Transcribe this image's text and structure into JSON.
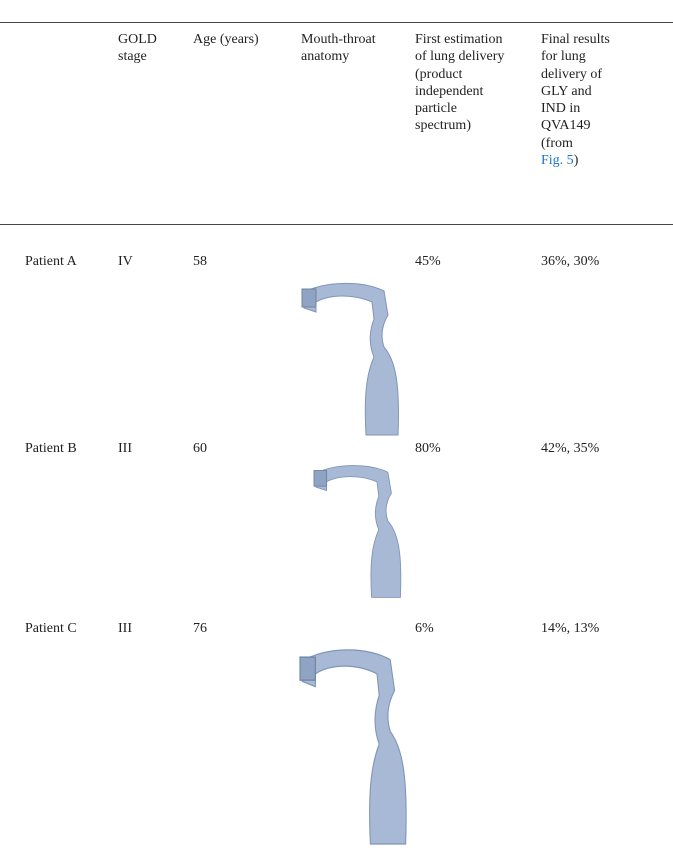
{
  "table": {
    "header": [
      [],
      [
        "GOLD",
        "stage"
      ],
      [
        "Age (years)"
      ],
      [
        "Mouth-throat",
        "anatomy"
      ],
      [
        "First estimation",
        "of lung delivery",
        "(product",
        "independent",
        "particle",
        "spectrum)"
      ],
      [
        "Final results",
        "for lung",
        "delivery of",
        "GLY and",
        "IND in",
        "QVA149",
        "(from"
      ]
    ],
    "header_link": "Fig. 5",
    "header_link_suffix": ")",
    "rows": [
      [
        "Patient A",
        "IV",
        "58",
        "45%",
        "36%, 30%"
      ],
      [
        "Patient B",
        "III",
        "60",
        "80%",
        "42%, 35%"
      ],
      [
        "Patient C",
        "III",
        "76",
        "6%",
        "14%, 13%"
      ]
    ]
  }
}
